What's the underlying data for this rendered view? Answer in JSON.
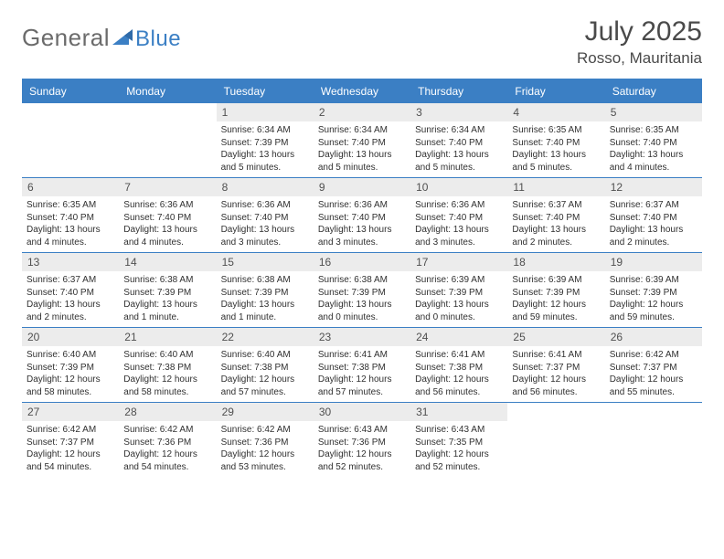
{
  "logo": {
    "text1": "General",
    "text2": "Blue"
  },
  "title": {
    "month": "July 2025",
    "location": "Rosso, Mauritania"
  },
  "colors": {
    "accent": "#3b7fc4",
    "header_text": "#ffffff",
    "daynum_bg": "#ececec",
    "body_text": "#303030",
    "title_text": "#4a4a4a",
    "logo_gray": "#6b6b6b"
  },
  "day_headers": [
    "Sunday",
    "Monday",
    "Tuesday",
    "Wednesday",
    "Thursday",
    "Friday",
    "Saturday"
  ],
  "weeks": [
    [
      {
        "n": "",
        "sr": "",
        "ss": "",
        "dl": ""
      },
      {
        "n": "",
        "sr": "",
        "ss": "",
        "dl": ""
      },
      {
        "n": "1",
        "sr": "Sunrise: 6:34 AM",
        "ss": "Sunset: 7:39 PM",
        "dl": "Daylight: 13 hours and 5 minutes."
      },
      {
        "n": "2",
        "sr": "Sunrise: 6:34 AM",
        "ss": "Sunset: 7:40 PM",
        "dl": "Daylight: 13 hours and 5 minutes."
      },
      {
        "n": "3",
        "sr": "Sunrise: 6:34 AM",
        "ss": "Sunset: 7:40 PM",
        "dl": "Daylight: 13 hours and 5 minutes."
      },
      {
        "n": "4",
        "sr": "Sunrise: 6:35 AM",
        "ss": "Sunset: 7:40 PM",
        "dl": "Daylight: 13 hours and 5 minutes."
      },
      {
        "n": "5",
        "sr": "Sunrise: 6:35 AM",
        "ss": "Sunset: 7:40 PM",
        "dl": "Daylight: 13 hours and 4 minutes."
      }
    ],
    [
      {
        "n": "6",
        "sr": "Sunrise: 6:35 AM",
        "ss": "Sunset: 7:40 PM",
        "dl": "Daylight: 13 hours and 4 minutes."
      },
      {
        "n": "7",
        "sr": "Sunrise: 6:36 AM",
        "ss": "Sunset: 7:40 PM",
        "dl": "Daylight: 13 hours and 4 minutes."
      },
      {
        "n": "8",
        "sr": "Sunrise: 6:36 AM",
        "ss": "Sunset: 7:40 PM",
        "dl": "Daylight: 13 hours and 3 minutes."
      },
      {
        "n": "9",
        "sr": "Sunrise: 6:36 AM",
        "ss": "Sunset: 7:40 PM",
        "dl": "Daylight: 13 hours and 3 minutes."
      },
      {
        "n": "10",
        "sr": "Sunrise: 6:36 AM",
        "ss": "Sunset: 7:40 PM",
        "dl": "Daylight: 13 hours and 3 minutes."
      },
      {
        "n": "11",
        "sr": "Sunrise: 6:37 AM",
        "ss": "Sunset: 7:40 PM",
        "dl": "Daylight: 13 hours and 2 minutes."
      },
      {
        "n": "12",
        "sr": "Sunrise: 6:37 AM",
        "ss": "Sunset: 7:40 PM",
        "dl": "Daylight: 13 hours and 2 minutes."
      }
    ],
    [
      {
        "n": "13",
        "sr": "Sunrise: 6:37 AM",
        "ss": "Sunset: 7:40 PM",
        "dl": "Daylight: 13 hours and 2 minutes."
      },
      {
        "n": "14",
        "sr": "Sunrise: 6:38 AM",
        "ss": "Sunset: 7:39 PM",
        "dl": "Daylight: 13 hours and 1 minute."
      },
      {
        "n": "15",
        "sr": "Sunrise: 6:38 AM",
        "ss": "Sunset: 7:39 PM",
        "dl": "Daylight: 13 hours and 1 minute."
      },
      {
        "n": "16",
        "sr": "Sunrise: 6:38 AM",
        "ss": "Sunset: 7:39 PM",
        "dl": "Daylight: 13 hours and 0 minutes."
      },
      {
        "n": "17",
        "sr": "Sunrise: 6:39 AM",
        "ss": "Sunset: 7:39 PM",
        "dl": "Daylight: 13 hours and 0 minutes."
      },
      {
        "n": "18",
        "sr": "Sunrise: 6:39 AM",
        "ss": "Sunset: 7:39 PM",
        "dl": "Daylight: 12 hours and 59 minutes."
      },
      {
        "n": "19",
        "sr": "Sunrise: 6:39 AM",
        "ss": "Sunset: 7:39 PM",
        "dl": "Daylight: 12 hours and 59 minutes."
      }
    ],
    [
      {
        "n": "20",
        "sr": "Sunrise: 6:40 AM",
        "ss": "Sunset: 7:39 PM",
        "dl": "Daylight: 12 hours and 58 minutes."
      },
      {
        "n": "21",
        "sr": "Sunrise: 6:40 AM",
        "ss": "Sunset: 7:38 PM",
        "dl": "Daylight: 12 hours and 58 minutes."
      },
      {
        "n": "22",
        "sr": "Sunrise: 6:40 AM",
        "ss": "Sunset: 7:38 PM",
        "dl": "Daylight: 12 hours and 57 minutes."
      },
      {
        "n": "23",
        "sr": "Sunrise: 6:41 AM",
        "ss": "Sunset: 7:38 PM",
        "dl": "Daylight: 12 hours and 57 minutes."
      },
      {
        "n": "24",
        "sr": "Sunrise: 6:41 AM",
        "ss": "Sunset: 7:38 PM",
        "dl": "Daylight: 12 hours and 56 minutes."
      },
      {
        "n": "25",
        "sr": "Sunrise: 6:41 AM",
        "ss": "Sunset: 7:37 PM",
        "dl": "Daylight: 12 hours and 56 minutes."
      },
      {
        "n": "26",
        "sr": "Sunrise: 6:42 AM",
        "ss": "Sunset: 7:37 PM",
        "dl": "Daylight: 12 hours and 55 minutes."
      }
    ],
    [
      {
        "n": "27",
        "sr": "Sunrise: 6:42 AM",
        "ss": "Sunset: 7:37 PM",
        "dl": "Daylight: 12 hours and 54 minutes."
      },
      {
        "n": "28",
        "sr": "Sunrise: 6:42 AM",
        "ss": "Sunset: 7:36 PM",
        "dl": "Daylight: 12 hours and 54 minutes."
      },
      {
        "n": "29",
        "sr": "Sunrise: 6:42 AM",
        "ss": "Sunset: 7:36 PM",
        "dl": "Daylight: 12 hours and 53 minutes."
      },
      {
        "n": "30",
        "sr": "Sunrise: 6:43 AM",
        "ss": "Sunset: 7:36 PM",
        "dl": "Daylight: 12 hours and 52 minutes."
      },
      {
        "n": "31",
        "sr": "Sunrise: 6:43 AM",
        "ss": "Sunset: 7:35 PM",
        "dl": "Daylight: 12 hours and 52 minutes."
      },
      {
        "n": "",
        "sr": "",
        "ss": "",
        "dl": ""
      },
      {
        "n": "",
        "sr": "",
        "ss": "",
        "dl": ""
      }
    ]
  ]
}
